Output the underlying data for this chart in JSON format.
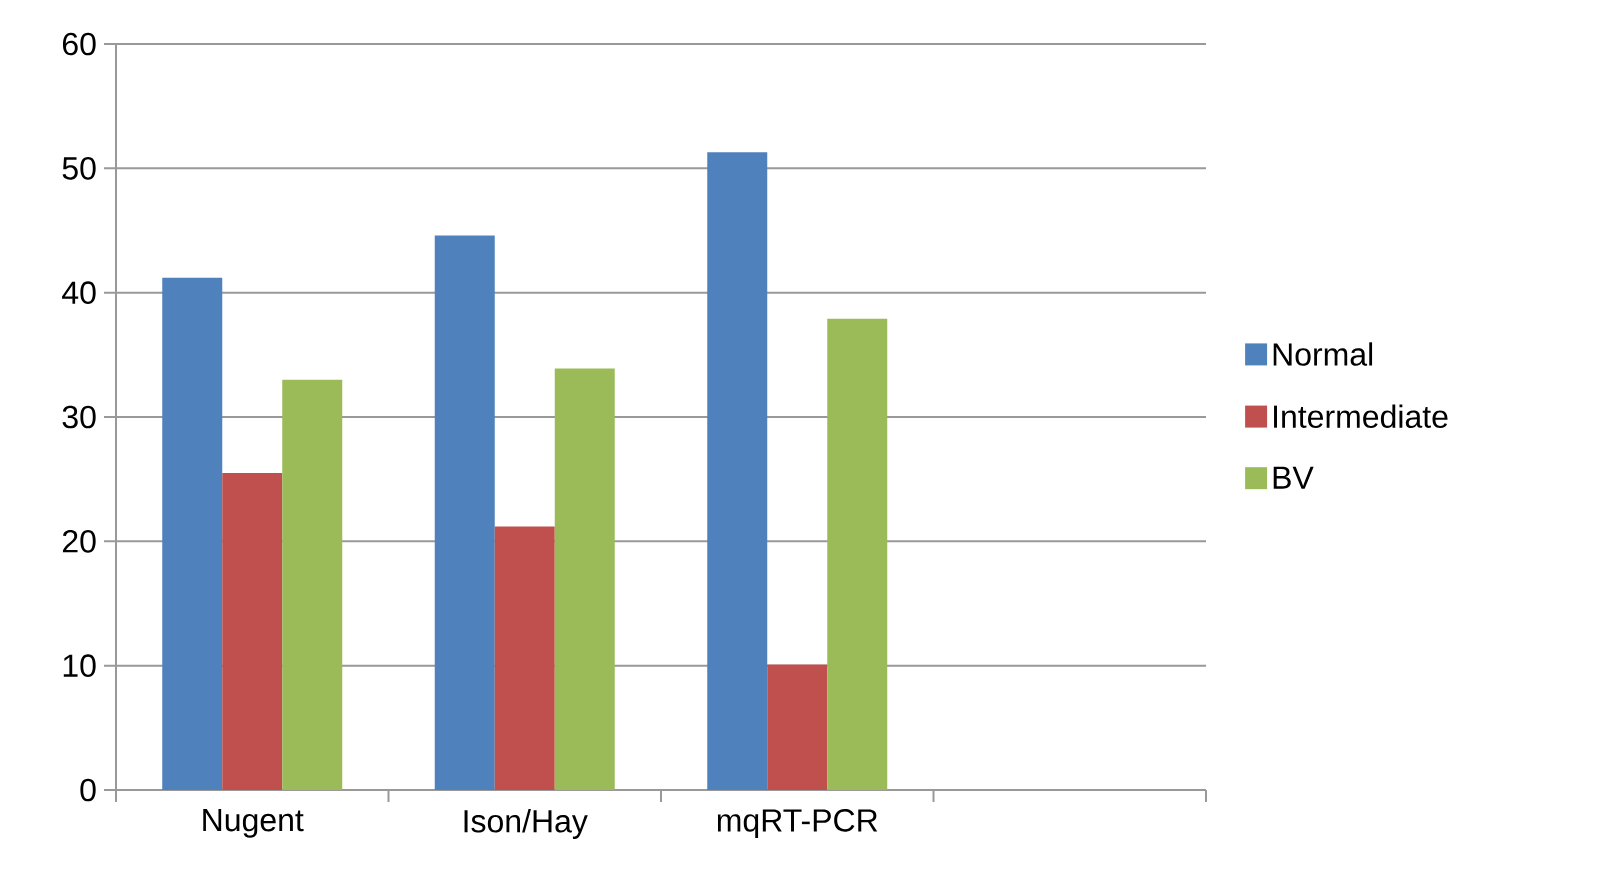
{
  "chart_data": {
    "type": "bar",
    "categories": [
      "Nugent",
      "Ison/Hay",
      "mqRT-PCR",
      null
    ],
    "series": [
      {
        "name": "Normal",
        "color": "#4f81bd",
        "values": [
          41.2,
          44.6,
          51.3,
          null
        ]
      },
      {
        "name": "Intermediate",
        "color": "#c0504d",
        "values": [
          25.5,
          21.2,
          10.1,
          null
        ]
      },
      {
        "name": "BV",
        "color": "#9bbb59",
        "values": [
          33.0,
          33.9,
          37.9,
          null
        ]
      }
    ],
    "ylim": [
      0,
      60
    ],
    "yticks": [
      0,
      10,
      20,
      30,
      40,
      50,
      60
    ],
    "grid": "y",
    "legend": "right"
  }
}
